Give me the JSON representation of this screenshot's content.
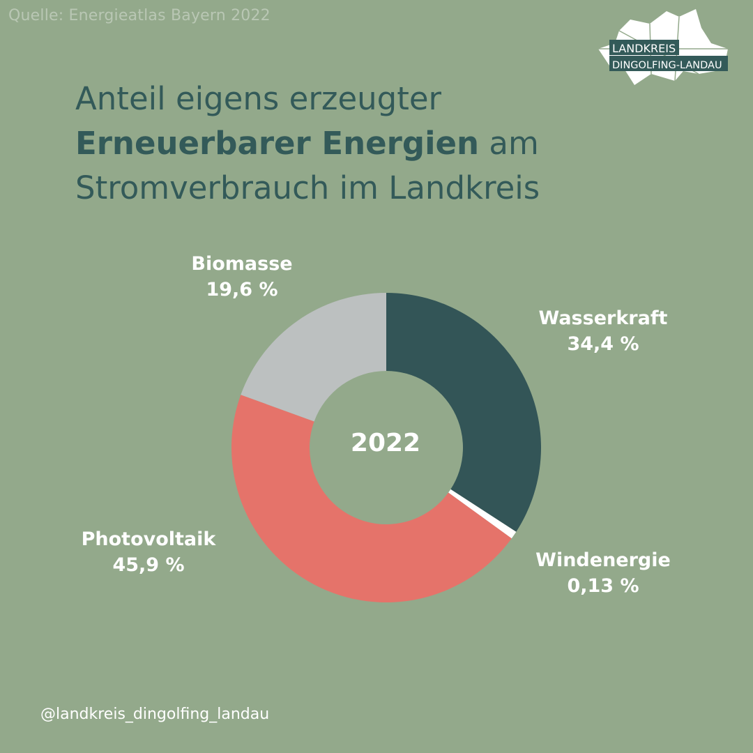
{
  "source": "Quelle: Energieatlas Bayern 2022",
  "logo": {
    "line1": "LANDKREIS",
    "line2": "DINGOLFING-LANDAU"
  },
  "title": {
    "line1": "Anteil eigens erzeugter",
    "line2_bold": "Erneuerbarer Energien",
    "line2_rest": " am",
    "line3": "Stromverbrauch im Landkreis"
  },
  "handle": "@landkreis_dingolfing_landau",
  "chart_data": {
    "type": "pie",
    "center_label": "2022",
    "slices": [
      {
        "name": "Wasserkraft",
        "value": 34.4,
        "label": "34,4 %",
        "color": "#335557"
      },
      {
        "name": "Windenergie",
        "value": 0.13,
        "label": "0,13 %",
        "color": "#ffffff"
      },
      {
        "name": "Photovoltaik",
        "value": 45.9,
        "label": "45,9 %",
        "color": "#e5736a"
      },
      {
        "name": "Biomasse",
        "value": 19.6,
        "label": "19,6 %",
        "color": "#bcc0c0"
      }
    ]
  }
}
